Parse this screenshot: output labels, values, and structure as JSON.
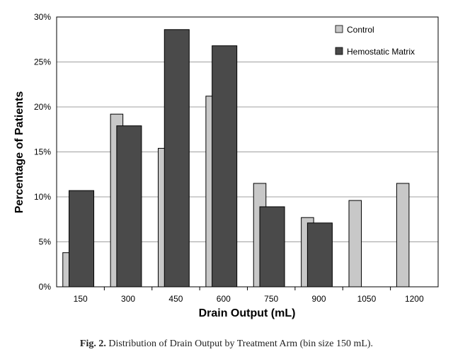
{
  "chart_data": {
    "type": "bar",
    "categories": [
      "150",
      "300",
      "450",
      "600",
      "750",
      "900",
      "1050",
      "1200"
    ],
    "series": [
      {
        "name": "Control",
        "values": [
          3.8,
          19.2,
          15.4,
          21.2,
          11.5,
          7.7,
          9.6,
          11.5
        ]
      },
      {
        "name": "Hemostatic Matrix",
        "values": [
          10.7,
          17.9,
          28.6,
          26.8,
          8.9,
          7.1,
          null,
          null
        ]
      }
    ],
    "xlabel": "Drain Output (mL)",
    "ylabel": "Percentage of Patients",
    "ylim": [
      0,
      30
    ],
    "yticks": [
      "0%",
      "5%",
      "10%",
      "15%",
      "20%",
      "25%",
      "30%"
    ],
    "ytick_values": [
      0,
      5,
      10,
      15,
      20,
      25,
      30
    ],
    "grid": true,
    "legend_position": "top-right"
  },
  "colors": {
    "control": "#c8c8c8",
    "hemostatic": "#4a4a4a",
    "grid": "#a0a0a0",
    "border": "#000000"
  },
  "caption": {
    "label": "Fig. 2.",
    "text": "Distribution of Drain Output by Treatment Arm (bin size 150 mL)."
  }
}
